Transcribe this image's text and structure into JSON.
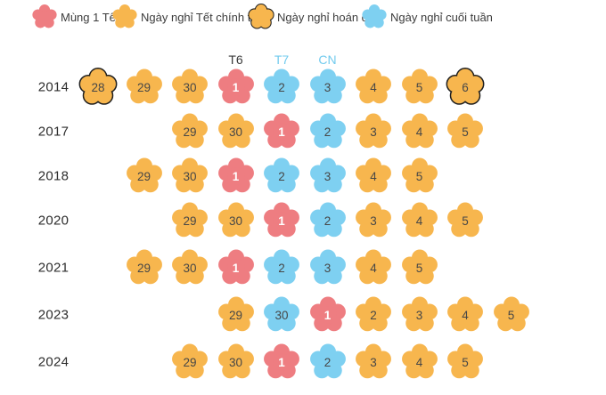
{
  "colors": {
    "tet": "#ee7d81",
    "official": "#f7b64e",
    "weekend": "#7ed0f1",
    "swap_outline": "#1f1f1f",
    "header_dark": "#3a3a3a",
    "header_blue": "#72cbee",
    "year_text": "#2d2d2d",
    "number_text": "#474747",
    "number_text_on_tet": "#ffffff",
    "background": "#ffffff"
  },
  "legend": {
    "items": [
      {
        "id": "mung1",
        "label": "Mùng 1 Tết",
        "type": "tet"
      },
      {
        "id": "official",
        "label": "Ngày nghỉ Tết chính thức",
        "type": "official"
      },
      {
        "id": "swap",
        "label": "Ngày nghỉ hoán đổi",
        "type": "swap"
      },
      {
        "id": "weekend",
        "label": "Ngày nghỉ cuối tuần",
        "type": "weekend"
      }
    ]
  },
  "chart_data": {
    "type": "table",
    "title": "",
    "columns": 10,
    "weekday_headers": [
      {
        "label": "T6",
        "column": 4,
        "color": "#3a3a3a"
      },
      {
        "label": "T7",
        "column": 5,
        "color": "#72cbee"
      },
      {
        "label": "CN",
        "column": 6,
        "color": "#72cbee"
      }
    ],
    "cell_types": {
      "tet": "Mùng 1 Tết",
      "official": "Ngày nghỉ Tết chính thức",
      "swap": "Ngày nghỉ hoán đổi",
      "weekend": "Ngày nghỉ cuối tuần"
    },
    "rows": [
      {
        "year": "2014",
        "days": [
          {
            "col": 1,
            "day": "28",
            "type": "swap"
          },
          {
            "col": 2,
            "day": "29",
            "type": "official"
          },
          {
            "col": 3,
            "day": "30",
            "type": "official"
          },
          {
            "col": 4,
            "day": "1",
            "type": "tet"
          },
          {
            "col": 5,
            "day": "2",
            "type": "weekend"
          },
          {
            "col": 6,
            "day": "3",
            "type": "weekend"
          },
          {
            "col": 7,
            "day": "4",
            "type": "official"
          },
          {
            "col": 8,
            "day": "5",
            "type": "official"
          },
          {
            "col": 9,
            "day": "6",
            "type": "swap"
          }
        ]
      },
      {
        "year": "2017",
        "days": [
          {
            "col": 3,
            "day": "29",
            "type": "official"
          },
          {
            "col": 4,
            "day": "30",
            "type": "official"
          },
          {
            "col": 5,
            "day": "1",
            "type": "tet"
          },
          {
            "col": 6,
            "day": "2",
            "type": "weekend"
          },
          {
            "col": 7,
            "day": "3",
            "type": "official"
          },
          {
            "col": 8,
            "day": "4",
            "type": "official"
          },
          {
            "col": 9,
            "day": "5",
            "type": "official"
          }
        ]
      },
      {
        "year": "2018",
        "days": [
          {
            "col": 2,
            "day": "29",
            "type": "official"
          },
          {
            "col": 3,
            "day": "30",
            "type": "official"
          },
          {
            "col": 4,
            "day": "1",
            "type": "tet"
          },
          {
            "col": 5,
            "day": "2",
            "type": "weekend"
          },
          {
            "col": 6,
            "day": "3",
            "type": "weekend"
          },
          {
            "col": 7,
            "day": "4",
            "type": "official"
          },
          {
            "col": 8,
            "day": "5",
            "type": "official"
          }
        ]
      },
      {
        "year": "2020",
        "days": [
          {
            "col": 3,
            "day": "29",
            "type": "official"
          },
          {
            "col": 4,
            "day": "30",
            "type": "official"
          },
          {
            "col": 5,
            "day": "1",
            "type": "tet"
          },
          {
            "col": 6,
            "day": "2",
            "type": "weekend"
          },
          {
            "col": 7,
            "day": "3",
            "type": "official"
          },
          {
            "col": 8,
            "day": "4",
            "type": "official"
          },
          {
            "col": 9,
            "day": "5",
            "type": "official"
          }
        ]
      },
      {
        "year": "2021",
        "days": [
          {
            "col": 2,
            "day": "29",
            "type": "official"
          },
          {
            "col": 3,
            "day": "30",
            "type": "official"
          },
          {
            "col": 4,
            "day": "1",
            "type": "tet"
          },
          {
            "col": 5,
            "day": "2",
            "type": "weekend"
          },
          {
            "col": 6,
            "day": "3",
            "type": "weekend"
          },
          {
            "col": 7,
            "day": "4",
            "type": "official"
          },
          {
            "col": 8,
            "day": "5",
            "type": "official"
          }
        ]
      },
      {
        "year": "2023",
        "days": [
          {
            "col": 4,
            "day": "29",
            "type": "official"
          },
          {
            "col": 5,
            "day": "30",
            "type": "weekend"
          },
          {
            "col": 6,
            "day": "1",
            "type": "tet"
          },
          {
            "col": 7,
            "day": "2",
            "type": "official"
          },
          {
            "col": 8,
            "day": "3",
            "type": "official"
          },
          {
            "col": 9,
            "day": "4",
            "type": "official"
          },
          {
            "col": 10,
            "day": "5",
            "type": "official"
          }
        ]
      },
      {
        "year": "2024",
        "days": [
          {
            "col": 3,
            "day": "29",
            "type": "official"
          },
          {
            "col": 4,
            "day": "30",
            "type": "official"
          },
          {
            "col": 5,
            "day": "1",
            "type": "tet"
          },
          {
            "col": 6,
            "day": "2",
            "type": "weekend"
          },
          {
            "col": 7,
            "day": "3",
            "type": "official"
          },
          {
            "col": 8,
            "day": "4",
            "type": "official"
          },
          {
            "col": 9,
            "day": "5",
            "type": "official"
          }
        ]
      }
    ]
  }
}
